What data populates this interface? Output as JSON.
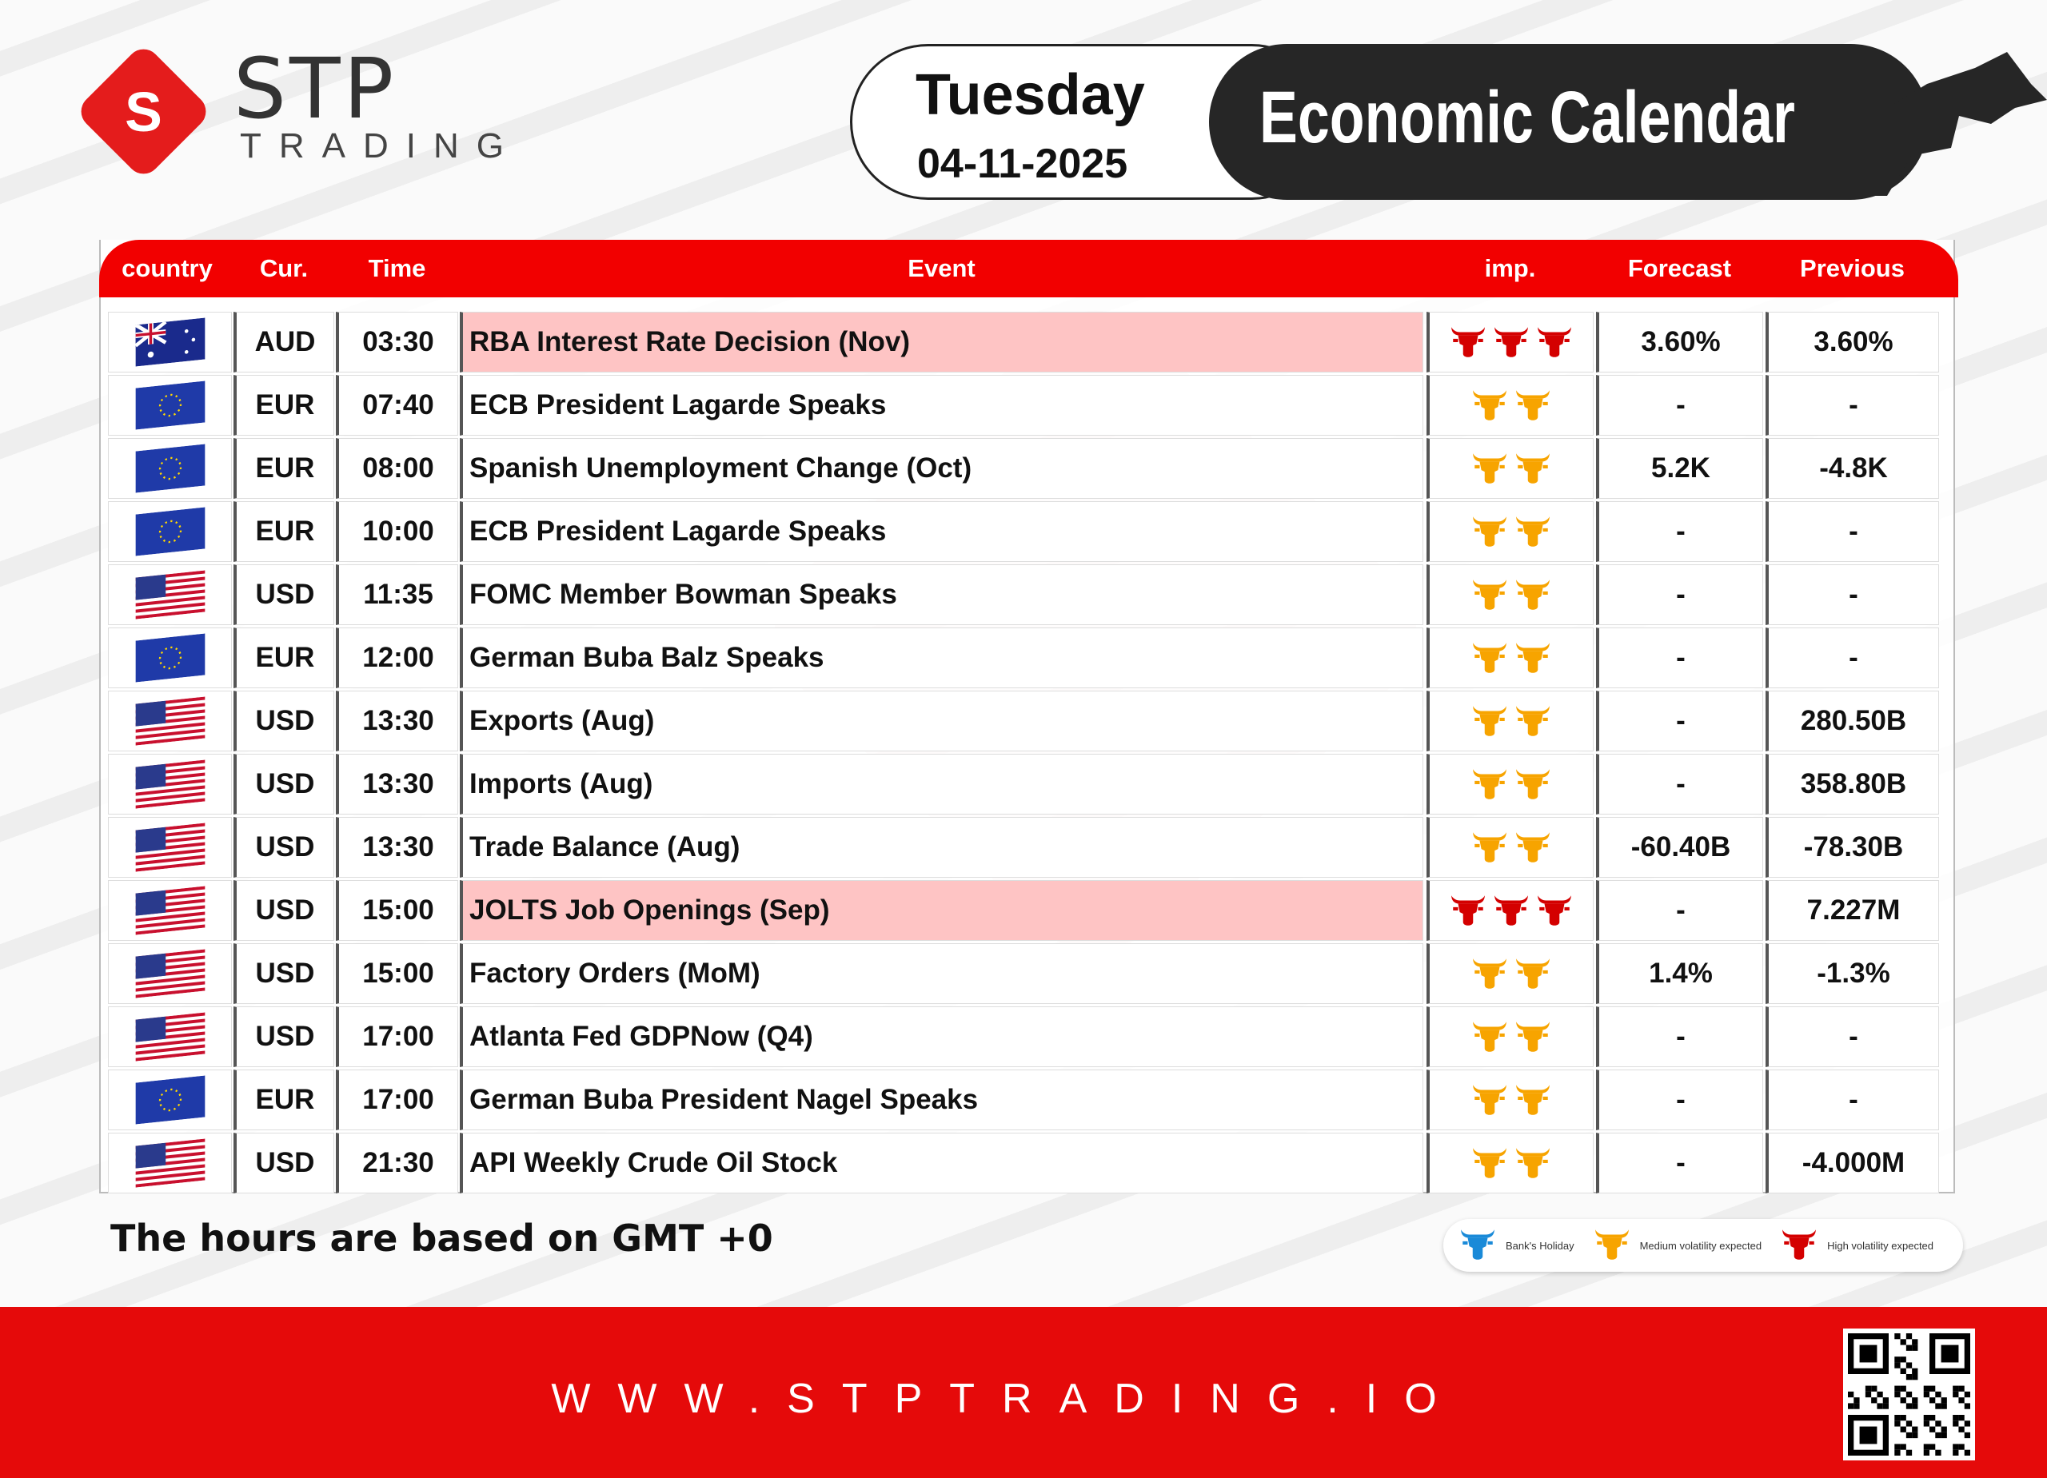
{
  "brand": {
    "name": "STP",
    "sub": "TRADING"
  },
  "header": {
    "day": "Tuesday",
    "date": "04-11-2025",
    "title": "Economic Calendar"
  },
  "columns": {
    "country": "country",
    "cur": "Cur.",
    "time": "Time",
    "event": "Event",
    "imp": "imp.",
    "forecast": "Forecast",
    "previous": "Previous"
  },
  "colors": {
    "red": "#f20000",
    "medium": "#f7a400",
    "high": "#d40000",
    "holiday": "#1a8ad8",
    "highlight": "#fec4c4"
  },
  "rows": [
    {
      "flag": "australia-flag",
      "cur": "AUD",
      "time": "03:30",
      "event": "RBA Interest Rate Decision  (Nov)",
      "imp": "high",
      "forecast": "3.60%",
      "previous": "3.60%"
    },
    {
      "flag": "eu-flag",
      "cur": "EUR",
      "time": "07:40",
      "event": "ECB President Lagarde Speaks",
      "imp": "medium",
      "forecast": "-",
      "previous": "-"
    },
    {
      "flag": "eu-flag",
      "cur": "EUR",
      "time": "08:00",
      "event": "Spanish Unemployment Change  (Oct)",
      "imp": "medium",
      "forecast": "5.2K",
      "previous": "-4.8K"
    },
    {
      "flag": "eu-flag",
      "cur": "EUR",
      "time": "10:00",
      "event": "ECB President Lagarde Speaks",
      "imp": "medium",
      "forecast": "-",
      "previous": "-"
    },
    {
      "flag": "us-flag",
      "cur": "USD",
      "time": "11:35",
      "event": "FOMC Member Bowman Speaks",
      "imp": "medium",
      "forecast": "-",
      "previous": "-"
    },
    {
      "flag": "eu-flag",
      "cur": "EUR",
      "time": "12:00",
      "event": "German Buba Balz Speaks",
      "imp": "medium",
      "forecast": "-",
      "previous": "-"
    },
    {
      "flag": "us-flag",
      "cur": "USD",
      "time": "13:30",
      "event": "Exports  (Aug)",
      "imp": "medium",
      "forecast": "-",
      "previous": "280.50B"
    },
    {
      "flag": "us-flag",
      "cur": "USD",
      "time": "13:30",
      "event": "Imports  (Aug)",
      "imp": "medium",
      "forecast": "-",
      "previous": "358.80B"
    },
    {
      "flag": "us-flag",
      "cur": "USD",
      "time": "13:30",
      "event": "Trade Balance  (Aug)",
      "imp": "medium",
      "forecast": "-60.40B",
      "previous": "-78.30B"
    },
    {
      "flag": "us-flag",
      "cur": "USD",
      "time": "15:00",
      "event": "JOLTS Job Openings  (Sep)",
      "imp": "high",
      "forecast": "-",
      "previous": "7.227M"
    },
    {
      "flag": "us-flag",
      "cur": "USD",
      "time": "15:00",
      "event": "Factory Orders (MoM)",
      "imp": "medium",
      "forecast": "1.4%",
      "previous": "-1.3%"
    },
    {
      "flag": "us-flag",
      "cur": "USD",
      "time": "17:00",
      "event": "Atlanta Fed GDPNow  (Q4)",
      "imp": "medium",
      "forecast": "-",
      "previous": "-"
    },
    {
      "flag": "eu-flag",
      "cur": "EUR",
      "time": "17:00",
      "event": "German Buba President Nagel Speaks",
      "imp": "medium",
      "forecast": "-",
      "previous": "-"
    },
    {
      "flag": "us-flag",
      "cur": "USD",
      "time": "21:30",
      "event": "API Weekly Crude Oil Stock",
      "imp": "medium",
      "forecast": "-",
      "previous": "-4.000M"
    }
  ],
  "note": "The hours are based on GMT +0",
  "legend": {
    "holiday": "Bank's Holiday",
    "medium": "Medium volatility expected",
    "high": "High volatility expected"
  },
  "footer": {
    "url": "WWW.STPTRADING.IO"
  }
}
